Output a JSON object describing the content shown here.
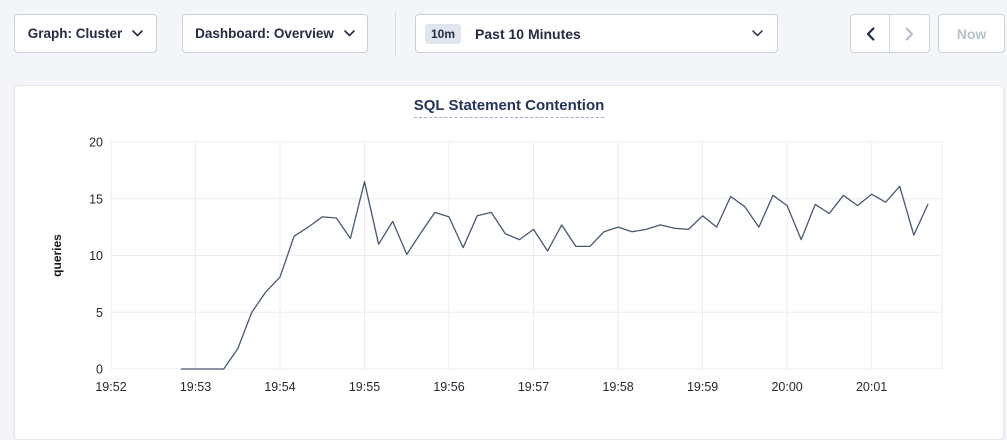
{
  "toolbar": {
    "graph_dropdown_label": "Graph: Cluster",
    "dashboard_dropdown_label": "Dashboard: Overview",
    "time_range": {
      "badge": "10m",
      "label": "Past 10 Minutes"
    },
    "now_button_label": "Now",
    "icons": {
      "graph_dropdown": "chevron-down",
      "dashboard_dropdown": "chevron-down",
      "time_range": "chevron-down",
      "previous_range": "chevron-left",
      "next_range": "chevron-right"
    },
    "disabled_buttons": [
      "next-range-button",
      "now-button"
    ]
  },
  "chart_data": {
    "type": "line",
    "title": "SQL Statement Contention",
    "ylabel": "queries",
    "ylim": [
      0,
      20
    ],
    "y_ticks": [
      0,
      5,
      10,
      15,
      20
    ],
    "x_ticks": [
      "19:52",
      "19:53",
      "19:54",
      "19:55",
      "19:56",
      "19:57",
      "19:58",
      "19:59",
      "20:00",
      "20:01"
    ],
    "x_tick_interval_seconds": 60,
    "x_domain_seconds": 590,
    "grid": true,
    "legend": "none",
    "line_color": "#475872",
    "series": [
      {
        "name": "queries",
        "start_time": "19:52:50",
        "start_offset_seconds": 50,
        "interval_seconds": 10,
        "values": [
          0,
          0,
          0,
          0,
          1.8,
          5,
          6.8,
          8.1,
          11.7,
          12.5,
          13.4,
          13.3,
          11.5,
          16.5,
          11,
          13,
          10.1,
          12,
          13.8,
          13.4,
          10.7,
          13.5,
          13.8,
          11.9,
          11.4,
          12.3,
          10.4,
          12.7,
          10.8,
          10.8,
          12.1,
          12.5,
          12.1,
          12.3,
          12.7,
          12.4,
          12.3,
          13.5,
          12.5,
          15.2,
          14.3,
          12.5,
          15.3,
          14.4,
          11.4,
          14.5,
          13.7,
          15.3,
          14.4,
          15.4,
          14.7,
          16.1,
          11.8,
          14.5
        ]
      }
    ]
  },
  "colors": {
    "page_bg": "#f4f5f9",
    "card_bg": "#ffffff",
    "text_dark": "#242b43",
    "disabled_text": "#b9c1cd",
    "title_text": "#26345a",
    "gridline": "#ececf0",
    "line": "#475872"
  }
}
